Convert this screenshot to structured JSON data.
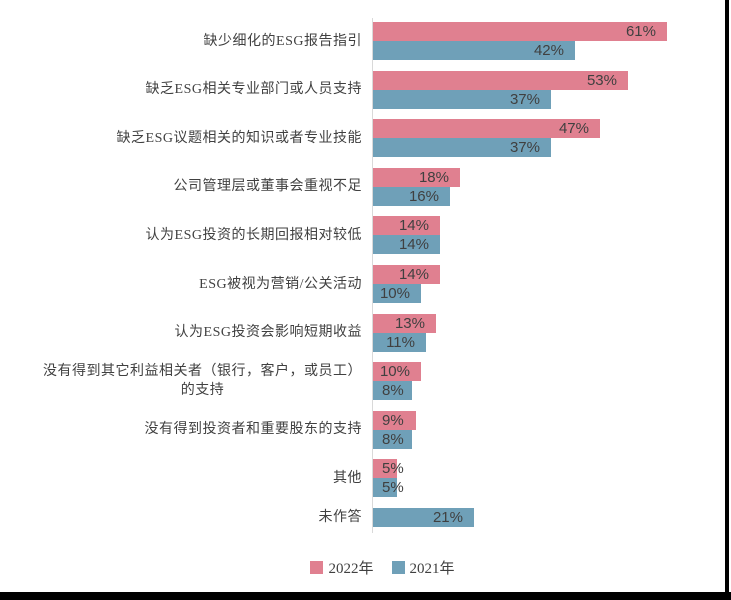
{
  "chart_data": {
    "type": "bar",
    "orientation": "horizontal",
    "title": "",
    "categories": [
      "缺少细化的ESG报告指引",
      "缺乏ESG相关专业部门或人员支持",
      "缺乏ESG议题相关的知识或者专业技能",
      "公司管理层或董事会重视不足",
      "认为ESG投资的长期回报相对较低",
      "ESG被视为营销/公关活动",
      "认为ESG投资会影响短期收益",
      "没有得到其它利益相关者（银行，客户，或员工）\n的支持",
      "没有得到投资者和重要股东的支持",
      "其他",
      "未作答"
    ],
    "series": [
      {
        "name": "2022年",
        "color": "#E08090",
        "values": [
          61,
          53,
          47,
          18,
          14,
          14,
          13,
          10,
          9,
          5,
          null
        ]
      },
      {
        "name": "2021年",
        "color": "#6FA0B8",
        "values": [
          42,
          37,
          37,
          16,
          14,
          10,
          11,
          8,
          8,
          5,
          21
        ]
      }
    ],
    "value_suffix": "%",
    "xlim": [
      0,
      74
    ],
    "grid": false,
    "axis_color": "#D9D9D9",
    "label_color": "#404040",
    "legend_position": "bottom"
  },
  "legend": {
    "items": [
      {
        "label": "2022年",
        "color": "#E08090"
      },
      {
        "label": "2021年",
        "color": "#6FA0B8"
      }
    ]
  }
}
